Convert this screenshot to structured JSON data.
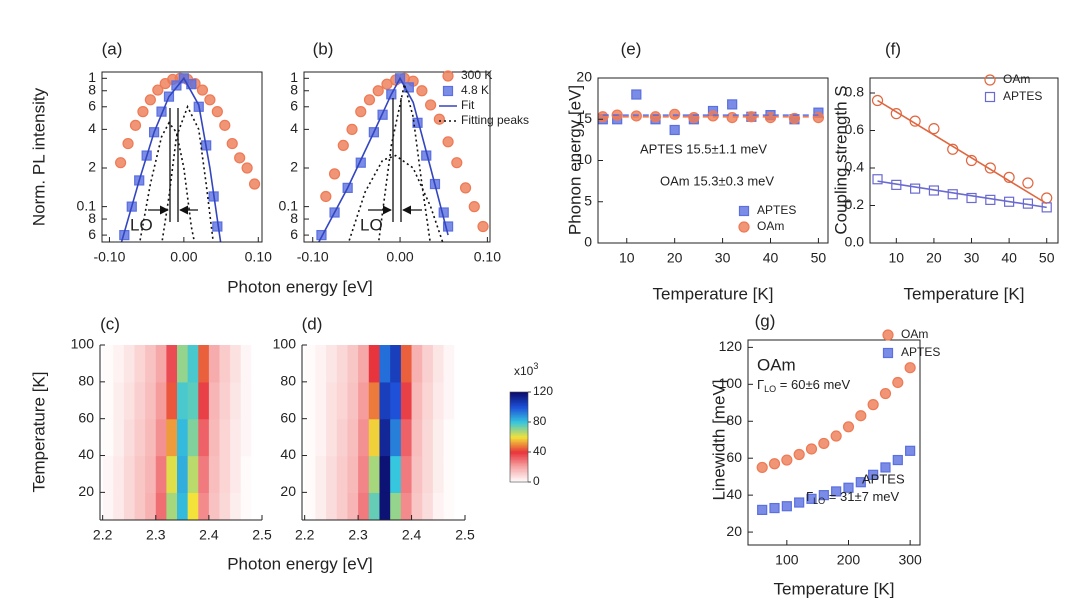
{
  "chart_data": [
    {
      "type": "scatter",
      "title": "(a)",
      "xlabel": "Photon energy [eV]",
      "ylabel": "Norm. PL intensity",
      "xlim": [
        -0.11,
        0.105
      ],
      "ylim": [
        0.053,
        1.12
      ],
      "yscale": "log",
      "xticks": [
        {
          "value": -0.1,
          "label": "-0.10"
        },
        {
          "value": 0,
          "label": "0.00"
        },
        {
          "value": 0.1,
          "label": "0.10"
        }
      ],
      "yticks": [
        1,
        {
          "value": 0.8,
          "label": "8"
        },
        {
          "value": 0.6,
          "label": "6"
        },
        {
          "value": 0.4,
          "label": "4"
        },
        {
          "value": 0.2,
          "label": "2"
        },
        0.1,
        {
          "value": 0.08,
          "label": "8"
        },
        {
          "value": 0.06,
          "label": "6"
        }
      ],
      "series": [
        {
          "color": "#ee7a55",
          "marker": "circle",
          "filled": true,
          "x": [
            -0.085,
            -0.075,
            -0.065,
            -0.055,
            -0.045,
            -0.035,
            -0.025,
            -0.015,
            -0.005,
            0.005,
            0.015,
            0.025,
            0.035,
            0.045,
            0.055,
            0.065,
            0.075,
            0.085,
            0.095
          ],
          "values": [
            0.22,
            0.31,
            0.43,
            0.55,
            0.68,
            0.81,
            0.91,
            0.98,
            1,
            0.98,
            0.91,
            0.81,
            0.68,
            0.55,
            0.43,
            0.31,
            0.24,
            0.2,
            0.15
          ]
        },
        {
          "color": "#5a6fe0",
          "marker": "square",
          "filled": true,
          "x": [
            -0.08,
            -0.07,
            -0.06,
            -0.05,
            -0.04,
            -0.03,
            -0.02,
            -0.01,
            0,
            0.01,
            0.02,
            0.03,
            0.04,
            0.045
          ],
          "values": [
            0.06,
            0.1,
            0.16,
            0.25,
            0.38,
            0.55,
            0.72,
            0.88,
            1,
            0.9,
            0.6,
            0.3,
            0.12,
            0.07
          ]
        },
        {
          "color": "#3346c0",
          "line": "solid",
          "x": [
            -0.085,
            -0.06,
            -0.04,
            -0.02,
            0,
            0.02,
            0.035,
            0.05
          ],
          "values": [
            0.05,
            0.16,
            0.38,
            0.72,
            1,
            0.62,
            0.2,
            0.05
          ]
        },
        {
          "color": "#111111",
          "line": "dotted",
          "x": [
            -0.06,
            -0.045,
            -0.03,
            -0.02,
            -0.01,
            0,
            0.01,
            0.015,
            null,
            -0.03,
            -0.02,
            -0.01,
            0.005,
            0.02,
            0.03,
            0.04
          ],
          "values": [
            0.05,
            0.15,
            0.35,
            0.45,
            0.38,
            0.2,
            0.07,
            0.05,
            null,
            0.05,
            0.12,
            0.35,
            0.6,
            0.4,
            0.15,
            0.05
          ]
        }
      ],
      "annotations": [
        {
          "text": "LO"
        }
      ]
    },
    {
      "type": "scatter",
      "title": "(b)",
      "legend": "upper right",
      "xlim": [
        -0.11,
        0.103
      ],
      "ylim": [
        0.053,
        1.12
      ],
      "yscale": "log",
      "xticks": [
        {
          "value": -0.1,
          "label": "-0.10"
        },
        {
          "value": 0,
          "label": "0.00"
        },
        {
          "value": 0.1,
          "label": "0.10"
        }
      ],
      "yticks": [
        1,
        {
          "value": 0.8,
          "label": "8"
        },
        {
          "value": 0.6,
          "label": "6"
        },
        {
          "value": 0.4,
          "label": "4"
        },
        {
          "value": 0.2,
          "label": "2"
        },
        0.1,
        {
          "value": 0.08,
          "label": "8"
        },
        {
          "value": 0.06,
          "label": "6"
        }
      ],
      "series": [
        {
          "name": "300 K",
          "color": "#ee7a55",
          "marker": "circle",
          "filled": true,
          "x": [
            -0.085,
            -0.075,
            -0.065,
            -0.055,
            -0.045,
            -0.035,
            -0.025,
            -0.015,
            -0.005,
            0.005,
            0.015,
            0.025,
            0.035,
            0.045,
            0.055,
            0.065,
            0.075,
            0.085,
            0.095
          ],
          "values": [
            0.12,
            0.18,
            0.3,
            0.4,
            0.55,
            0.68,
            0.8,
            0.9,
            0.97,
            1,
            0.95,
            0.8,
            0.62,
            0.48,
            0.32,
            0.22,
            0.14,
            0.1,
            0.07
          ]
        },
        {
          "name": "4.8 K",
          "color": "#5a6fe0",
          "marker": "square",
          "filled": true,
          "x": [
            -0.09,
            -0.075,
            -0.06,
            -0.045,
            -0.03,
            -0.02,
            -0.01,
            0,
            0.01,
            0.02,
            0.03,
            0.04,
            0.05,
            0.055
          ],
          "values": [
            0.06,
            0.09,
            0.14,
            0.22,
            0.38,
            0.52,
            0.75,
            1,
            0.85,
            0.45,
            0.25,
            0.15,
            0.09,
            0.07
          ]
        },
        {
          "name": "Fit",
          "color": "#3346c0",
          "line": "solid",
          "x": [
            -0.095,
            -0.06,
            -0.03,
            -0.01,
            0,
            0.015,
            0.035,
            0.055
          ],
          "values": [
            0.05,
            0.14,
            0.38,
            0.75,
            1,
            0.65,
            0.2,
            0.06
          ]
        },
        {
          "name": "Fitting peaks",
          "color": "#111111",
          "line": "dotted",
          "x": [
            -0.06,
            -0.04,
            -0.02,
            -0.005,
            0.015,
            0.035,
            0.05,
            null,
            -0.025,
            -0.01,
            0.005,
            0.015,
            0.025,
            0.035
          ],
          "values": [
            0.05,
            0.13,
            0.23,
            0.25,
            0.2,
            0.1,
            0.05,
            null,
            0.05,
            0.3,
            0.9,
            0.5,
            0.15,
            0.05
          ]
        }
      ],
      "annotations": [
        {
          "text": "LO"
        }
      ]
    },
    {
      "type": "heatmap",
      "title": "(c)",
      "xlabel": "Photon energy [eV]",
      "ylabel": "Temperature [K]",
      "xlim": [
        2.195,
        2.5
      ],
      "ylim": [
        5,
        100
      ],
      "xticks": [
        2.2,
        2.3,
        2.4,
        2.5
      ],
      "yticks": [
        20,
        40,
        60,
        80,
        100
      ],
      "x": [
        2.21,
        2.23,
        2.25,
        2.27,
        2.29,
        2.31,
        2.33,
        2.35,
        2.37,
        2.39,
        2.41,
        2.43,
        2.45,
        2.47,
        2.49
      ],
      "y": [
        10,
        30,
        50,
        70,
        90
      ],
      "z": [
        [
          2,
          5,
          9,
          13,
          18,
          30,
          68,
          82,
          60,
          25,
          14,
          9,
          4,
          1,
          0
        ],
        [
          2,
          5,
          9,
          13,
          17,
          28,
          62,
          84,
          66,
          28,
          15,
          10,
          5,
          1,
          0
        ],
        [
          1,
          4,
          8,
          12,
          16,
          24,
          52,
          82,
          72,
          32,
          16,
          10,
          5,
          2,
          0
        ],
        [
          1,
          4,
          7,
          11,
          15,
          22,
          44,
          78,
          76,
          38,
          17,
          11,
          6,
          2,
          0
        ],
        [
          1,
          3,
          6,
          10,
          14,
          20,
          36,
          70,
          78,
          45,
          19,
          12,
          7,
          2,
          0
        ]
      ]
    },
    {
      "type": "heatmap",
      "title": "(d)",
      "xlim": [
        2.195,
        2.5
      ],
      "ylim": [
        5,
        100
      ],
      "xticks": [
        2.2,
        2.3,
        2.4,
        2.5
      ],
      "yticks": [
        20,
        40,
        60,
        80,
        100
      ],
      "x": [
        2.21,
        2.23,
        2.25,
        2.27,
        2.29,
        2.31,
        2.33,
        2.35,
        2.37,
        2.39,
        2.41,
        2.43,
        2.45,
        2.47,
        2.49
      ],
      "y": [
        10,
        30,
        50,
        70,
        90
      ],
      "z": [
        [
          1,
          4,
          8,
          12,
          17,
          28,
          75,
          118,
          70,
          25,
          13,
          8,
          3,
          1,
          0
        ],
        [
          1,
          4,
          8,
          12,
          16,
          26,
          68,
          118,
          80,
          28,
          14,
          9,
          4,
          1,
          0
        ],
        [
          1,
          3,
          7,
          11,
          15,
          24,
          58,
          112,
          92,
          32,
          15,
          9,
          4,
          1,
          0
        ],
        [
          1,
          3,
          7,
          10,
          14,
          22,
          48,
          105,
          100,
          38,
          16,
          10,
          5,
          2,
          0
        ],
        [
          1,
          3,
          6,
          9,
          13,
          20,
          40,
          95,
          105,
          45,
          18,
          11,
          6,
          2,
          0
        ]
      ]
    },
    {
      "type": "scatter",
      "title": "(e)",
      "xlabel": "Temperature [K]",
      "ylabel": "Phonon energy [eV]",
      "legend": "lower right",
      "xlim": [
        4,
        52
      ],
      "ylim": [
        0,
        20
      ],
      "xticks": [
        10,
        20,
        30,
        40,
        50
      ],
      "yticks": [
        0,
        5,
        10,
        15,
        20
      ],
      "series": [
        {
          "name": "APTES",
          "color": "#5a6fe0",
          "marker": "square",
          "filled": true,
          "x": [
            5,
            8,
            12,
            16,
            20,
            24,
            28,
            32,
            36,
            40,
            45,
            50
          ],
          "values": [
            15,
            15,
            18,
            15,
            13.7,
            15,
            16,
            16.8,
            15.3,
            15.5,
            15,
            15.8
          ]
        },
        {
          "name": "OAm",
          "color": "#ee7a55",
          "marker": "circle",
          "filled": true,
          "x": [
            5,
            8,
            12,
            16,
            20,
            24,
            28,
            32,
            36,
            40,
            45,
            50
          ],
          "values": [
            15.3,
            15.5,
            15.4,
            15.3,
            15.6,
            15.2,
            15.4,
            15.2,
            15.3,
            15.2,
            15.1,
            15.2
          ]
        },
        {
          "color": "#5a6fe0",
          "line": "dashed",
          "x": [
            5,
            50
          ],
          "values": [
            15.5,
            15.5
          ]
        },
        {
          "color": "#ee7a55",
          "line": "dashed",
          "x": [
            5,
            50
          ],
          "values": [
            15.3,
            15.3
          ]
        }
      ],
      "annotations": [
        {
          "text": "APTES 15.5±1.1 meV"
        },
        {
          "text": "OAm 15.3±0.3 meV"
        }
      ]
    },
    {
      "type": "scatter",
      "title": "(f)",
      "xlabel": "Temperature [K]",
      "ylabel": "Coupling strength S",
      "legend": "upper right",
      "xlim": [
        3,
        53
      ],
      "ylim": [
        0,
        0.88
      ],
      "xticks": [
        10,
        20,
        30,
        40,
        50
      ],
      "yticks": [
        {
          "value": 0,
          "label": "0.0"
        },
        0.2,
        0.4,
        0.6,
        0.8
      ],
      "series": [
        {
          "name": "OAm",
          "color": "#e0663f",
          "marker": "circle",
          "filled": false,
          "x": [
            5,
            10,
            15,
            20,
            25,
            30,
            35,
            40,
            45,
            50
          ],
          "values": [
            0.76,
            0.69,
            0.65,
            0.61,
            0.5,
            0.44,
            0.4,
            0.35,
            0.32,
            0.24
          ]
        },
        {
          "name": "APTES",
          "color": "#6a6ad0",
          "marker": "square",
          "filled": false,
          "x": [
            5,
            10,
            15,
            20,
            25,
            30,
            35,
            40,
            45,
            50
          ],
          "values": [
            0.34,
            0.31,
            0.29,
            0.28,
            0.26,
            0.24,
            0.23,
            0.22,
            0.21,
            0.19
          ]
        },
        {
          "color": "#e0663f",
          "line": "solid",
          "x": [
            5,
            50
          ],
          "values": [
            0.76,
            0.21
          ]
        },
        {
          "color": "#6a6ad0",
          "line": "solid",
          "x": [
            5,
            50
          ],
          "values": [
            0.33,
            0.19
          ]
        }
      ]
    },
    {
      "type": "scatter",
      "title": "(g)",
      "xlabel": "Temperature [K]",
      "ylabel": "Linewidth [meV]",
      "legend": "upper right",
      "xlim": [
        37,
        316
      ],
      "ylim": [
        13,
        124
      ],
      "xticks": [
        100,
        200,
        300
      ],
      "yticks": [
        20,
        40,
        60,
        80,
        100,
        120
      ],
      "series": [
        {
          "name": "OAm",
          "color": "#ee7a55",
          "marker": "circle",
          "filled": true,
          "x": [
            60,
            80,
            100,
            120,
            140,
            160,
            180,
            200,
            220,
            240,
            260,
            280,
            300
          ],
          "values": [
            55,
            57,
            59,
            62,
            65,
            68,
            72,
            77,
            83,
            89,
            95,
            101,
            109
          ]
        },
        {
          "name": "APTES",
          "color": "#5a6fe0",
          "marker": "square",
          "filled": true,
          "x": [
            60,
            80,
            100,
            120,
            140,
            160,
            180,
            200,
            220,
            240,
            260,
            280,
            300
          ],
          "values": [
            32,
            33,
            34,
            36,
            38,
            40,
            42,
            44,
            47,
            51,
            55,
            59,
            64
          ]
        }
      ],
      "annotations": [
        {
          "text": "OAm"
        },
        {
          "symbol": "Γ",
          "subscript": "LO",
          "text": " = 60±6 meV"
        },
        {
          "text": "APTES"
        },
        {
          "symbol": "Γ",
          "subscript": "LO",
          "text": " = 31±7 meV"
        }
      ]
    }
  ],
  "colorbar": {
    "label": {
      "text": "x10",
      "superscript": "3"
    },
    "zlim": [
      0,
      120
    ],
    "zticks": [
      0,
      40,
      80,
      120
    ],
    "colorscale": [
      "#ffffff",
      "#f6a8a8",
      "#e8343c",
      "#f2e23a",
      "#36c6de",
      "#1e50d8",
      "#0b0b6a"
    ]
  }
}
